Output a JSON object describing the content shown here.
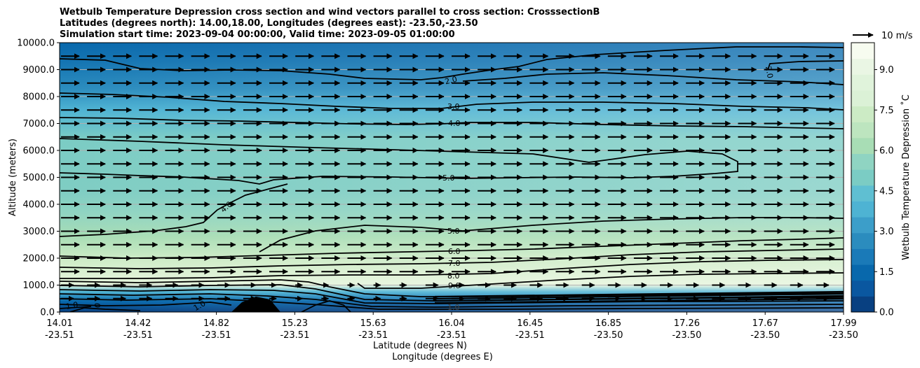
{
  "chart_data": {
    "type": "contour",
    "title_lines": [
      "Wetbulb Temperature Depression cross section and wind vectors parallel to cross section: CrosssectionB",
      "Latitudes (degrees north): 14.00,18.00, Longitudes (degrees east): -23.50,-23.50",
      "Simulation start time: 2023-09-04 00:00:00, Valid time: 2023-09-05 01:00:00"
    ],
    "ylabel": "Altitude (meters)",
    "xlabel_lat": "Latitude (degrees N)",
    "xlabel_lon": "Longitude (degrees E)",
    "ylim": [
      0,
      10000
    ],
    "y_ticks": [
      "0.0",
      "1000.0",
      "2000.0",
      "3000.0",
      "4000.0",
      "5000.0",
      "6000.0",
      "7000.0",
      "8000.0",
      "9000.0",
      "10000.0"
    ],
    "x_ticks": [
      {
        "lat": "14.01",
        "lon": "-23.51"
      },
      {
        "lat": "14.42",
        "lon": "-23.51"
      },
      {
        "lat": "14.82",
        "lon": "-23.51"
      },
      {
        "lat": "15.23",
        "lon": "-23.51"
      },
      {
        "lat": "15.63",
        "lon": "-23.51"
      },
      {
        "lat": "16.04",
        "lon": "-23.51"
      },
      {
        "lat": "16.45",
        "lon": "-23.51"
      },
      {
        "lat": "16.85",
        "lon": "-23.50"
      },
      {
        "lat": "17.26",
        "lon": "-23.50"
      },
      {
        "lat": "17.67",
        "lon": "-23.50"
      },
      {
        "lat": "17.99",
        "lon": "-23.50"
      }
    ],
    "colorbar": {
      "label": "Wetbulb Temperature Depression ˚C",
      "range": [
        0,
        10
      ],
      "ticks": [
        "0.0",
        "1.5",
        "3.0",
        "4.5",
        "6.0",
        "7.5",
        "9.0"
      ],
      "colors": [
        "#084081",
        "#0a57a0",
        "#0868ac",
        "#1a7ab8",
        "#2b8cbe",
        "#3c9ec9",
        "#4eb3d3",
        "#5fbfd2",
        "#7bccc4",
        "#8fd4c2",
        "#a8ddb5",
        "#bde5bf",
        "#ccebc5",
        "#dbf1d6",
        "#e0f3db",
        "#eaf6e4",
        "#f7fcf0"
      ]
    },
    "quiver_key": "10 m/s",
    "contour_labels": [
      "2.0",
      "3.0",
      "4.0",
      "5.0",
      "4.0",
      "5.0",
      "6.0",
      "7.0",
      "8.0",
      "9.0",
      "1.0",
      "2.0",
      "1.0",
      "1.0",
      "0"
    ]
  }
}
